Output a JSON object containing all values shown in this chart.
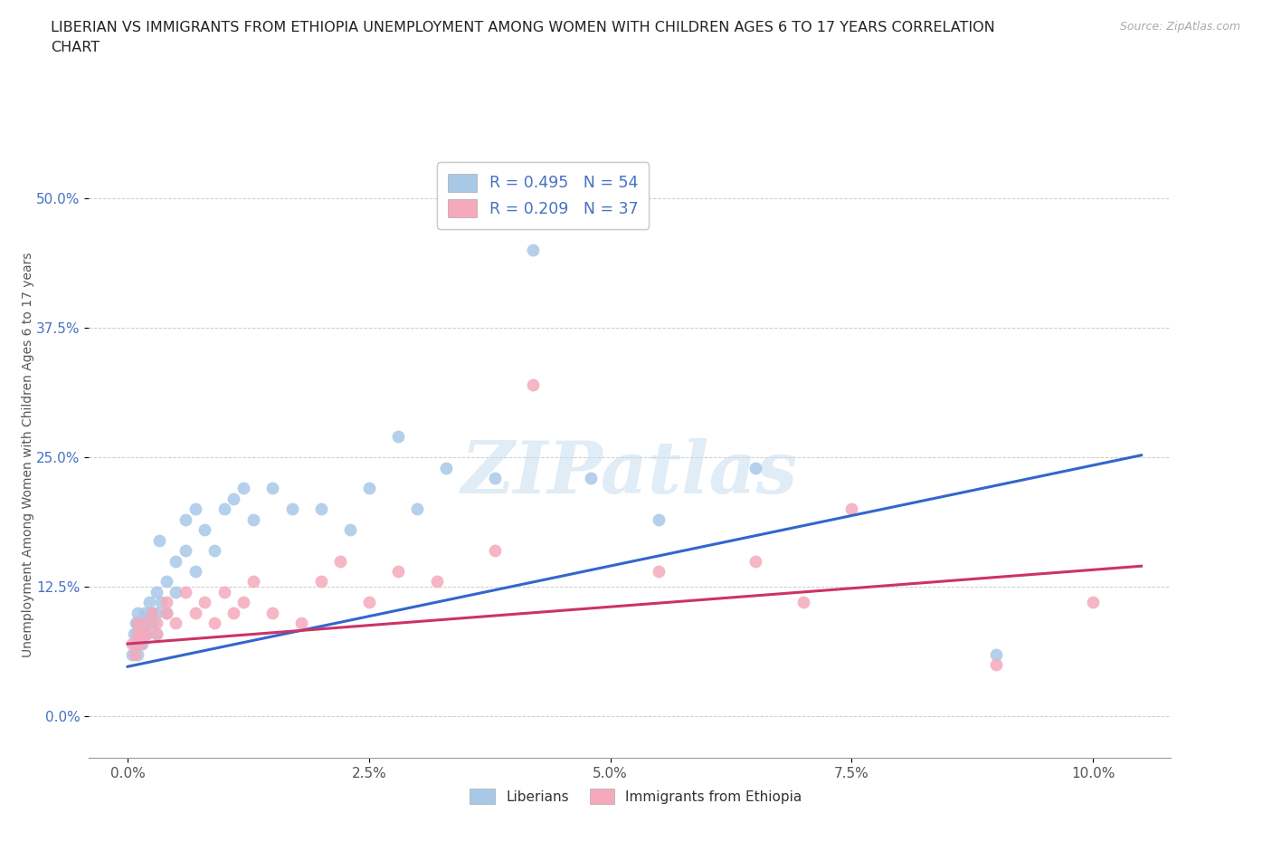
{
  "title_line1": "LIBERIAN VS IMMIGRANTS FROM ETHIOPIA UNEMPLOYMENT AMONG WOMEN WITH CHILDREN AGES 6 TO 17 YEARS CORRELATION",
  "title_line2": "CHART",
  "source": "Source: ZipAtlas.com",
  "xlabel_ticks": [
    "0.0%",
    "2.5%",
    "5.0%",
    "7.5%",
    "10.0%"
  ],
  "xlabel_vals": [
    0.0,
    0.025,
    0.05,
    0.075,
    0.1
  ],
  "ylabel_ticks": [
    "0.0%",
    "12.5%",
    "25.0%",
    "37.5%",
    "50.0%"
  ],
  "ylabel_vals": [
    0.0,
    0.125,
    0.25,
    0.375,
    0.5
  ],
  "xlim": [
    -0.004,
    0.108
  ],
  "ylim": [
    -0.04,
    0.545
  ],
  "blue_color": "#a8c8e8",
  "pink_color": "#f4aabc",
  "blue_line_color": "#3366cc",
  "pink_line_color": "#cc3366",
  "R_blue": 0.495,
  "N_blue": 54,
  "R_pink": 0.209,
  "N_pink": 37,
  "legend_label_blue": "Liberians",
  "legend_label_pink": "Immigrants from Ethiopia",
  "ylabel": "Unemployment Among Women with Children Ages 6 to 17 years",
  "watermark": "ZIPatlas",
  "blue_x": [
    0.0005,
    0.0006,
    0.0007,
    0.0008,
    0.0009,
    0.001,
    0.001,
    0.001,
    0.001,
    0.0012,
    0.0013,
    0.0014,
    0.0015,
    0.0015,
    0.0016,
    0.0018,
    0.002,
    0.002,
    0.0022,
    0.0023,
    0.0025,
    0.003,
    0.003,
    0.003,
    0.0033,
    0.0035,
    0.004,
    0.004,
    0.005,
    0.005,
    0.006,
    0.006,
    0.007,
    0.007,
    0.008,
    0.009,
    0.01,
    0.011,
    0.012,
    0.013,
    0.015,
    0.017,
    0.02,
    0.023,
    0.025,
    0.028,
    0.03,
    0.033,
    0.038,
    0.042,
    0.048,
    0.055,
    0.065,
    0.09
  ],
  "blue_y": [
    0.06,
    0.08,
    0.07,
    0.09,
    0.08,
    0.1,
    0.09,
    0.07,
    0.06,
    0.08,
    0.07,
    0.09,
    0.08,
    0.07,
    0.09,
    0.1,
    0.08,
    0.09,
    0.11,
    0.1,
    0.09,
    0.1,
    0.12,
    0.08,
    0.17,
    0.11,
    0.1,
    0.13,
    0.15,
    0.12,
    0.19,
    0.16,
    0.14,
    0.2,
    0.18,
    0.16,
    0.2,
    0.21,
    0.22,
    0.19,
    0.22,
    0.2,
    0.2,
    0.18,
    0.22,
    0.27,
    0.2,
    0.24,
    0.23,
    0.45,
    0.23,
    0.19,
    0.24,
    0.06
  ],
  "pink_x": [
    0.0005,
    0.0007,
    0.001,
    0.001,
    0.0013,
    0.0015,
    0.002,
    0.002,
    0.0025,
    0.003,
    0.003,
    0.004,
    0.004,
    0.005,
    0.006,
    0.007,
    0.008,
    0.009,
    0.01,
    0.011,
    0.012,
    0.013,
    0.015,
    0.018,
    0.02,
    0.022,
    0.025,
    0.028,
    0.032,
    0.038,
    0.042,
    0.055,
    0.065,
    0.07,
    0.075,
    0.09,
    0.1
  ],
  "pink_y": [
    0.07,
    0.06,
    0.08,
    0.09,
    0.07,
    0.08,
    0.09,
    0.08,
    0.1,
    0.09,
    0.08,
    0.11,
    0.1,
    0.09,
    0.12,
    0.1,
    0.11,
    0.09,
    0.12,
    0.1,
    0.11,
    0.13,
    0.1,
    0.09,
    0.13,
    0.15,
    0.11,
    0.14,
    0.13,
    0.16,
    0.32,
    0.14,
    0.15,
    0.11,
    0.2,
    0.05,
    0.11
  ],
  "grid_color": "#cccccc",
  "bg_color": "#ffffff",
  "title_color": "#222222",
  "tick_label_color_y": "#4472c4",
  "tick_label_color_x": "#555555"
}
